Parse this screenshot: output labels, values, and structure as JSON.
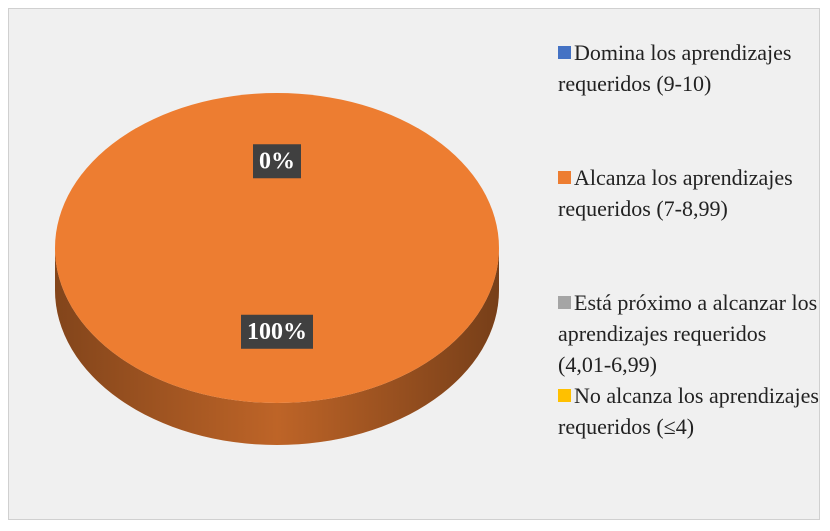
{
  "chart_data": {
    "type": "pie",
    "categories": [
      "Domina los aprendizajes requeridos (9-10)",
      "Alcanza los aprendizajes requeridos (7-8,99)",
      "Está próximo a alcanzar los aprendizajes requeridos (4,01-6,99)",
      "No alcanza los aprendizajes requeridos (≤4)"
    ],
    "values": [
      0,
      100,
      0,
      0
    ],
    "value_labels": [
      "0%",
      "100%",
      null,
      null
    ],
    "colors": [
      "#4472c4",
      "#ed7d31",
      "#a5a5a5",
      "#ffc000"
    ],
    "legend": "right"
  }
}
